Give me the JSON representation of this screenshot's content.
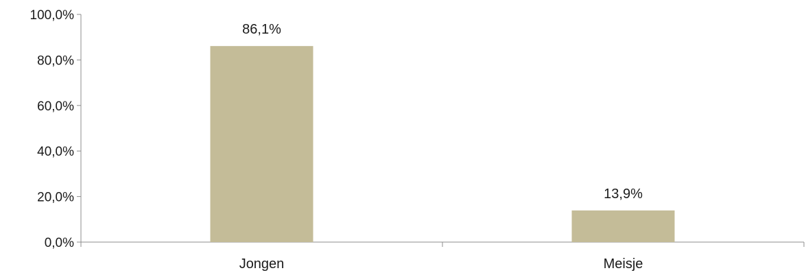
{
  "chart_data": {
    "type": "bar",
    "title": "",
    "xlabel": "",
    "ylabel": "",
    "categories": [
      "Jongen",
      "Meisje"
    ],
    "values": [
      86.1,
      13.9
    ],
    "data_labels": [
      "86,1%",
      "13,9%"
    ],
    "ylim": [
      0,
      100
    ],
    "y_ticks": [
      0,
      20,
      40,
      60,
      80,
      100
    ],
    "y_tick_labels": [
      "0,0%",
      "20,0%",
      "40,0%",
      "60,0%",
      "80,0%",
      "100,0%"
    ],
    "grid": false,
    "legend": "none",
    "bar_color": "#c4bc98"
  }
}
